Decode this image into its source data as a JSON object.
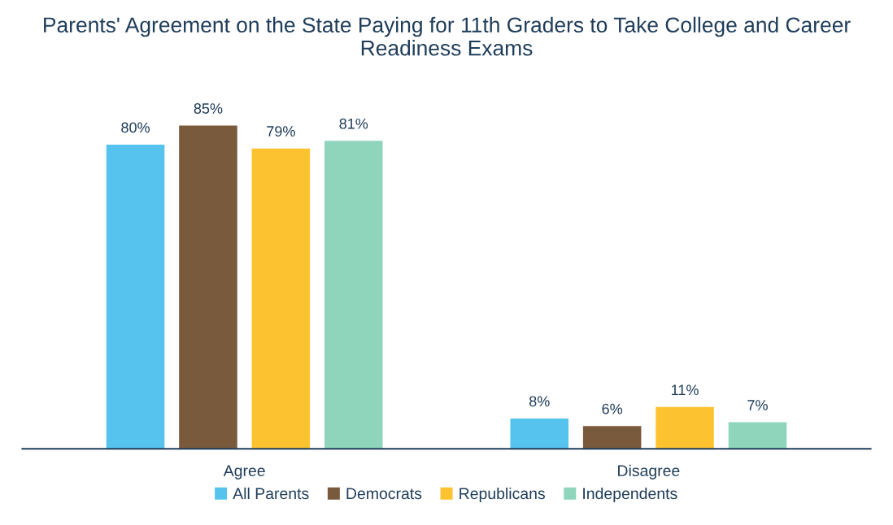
{
  "chart_data": {
    "type": "bar",
    "title": "Parents' Agreement on the State Paying for 11th Graders to Take College and Career Readiness Exams",
    "categories": [
      "Agree",
      "Disagree"
    ],
    "series": [
      {
        "name": "All Parents",
        "color": "#56c3ee",
        "values": [
          80,
          8
        ],
        "value_labels": [
          "80%",
          "8%"
        ]
      },
      {
        "name": "Democrats",
        "color": "#7a5a3c",
        "values": [
          85,
          6
        ],
        "value_labels": [
          "85%",
          "6%"
        ]
      },
      {
        "name": "Republicans",
        "color": "#fdc22f",
        "values": [
          79,
          11
        ],
        "value_labels": [
          "79%",
          "11%"
        ]
      },
      {
        "name": "Independents",
        "color": "#8fd5bc",
        "values": [
          81,
          7
        ],
        "value_labels": [
          "81%",
          "7%"
        ]
      }
    ],
    "legend": "bottom"
  }
}
